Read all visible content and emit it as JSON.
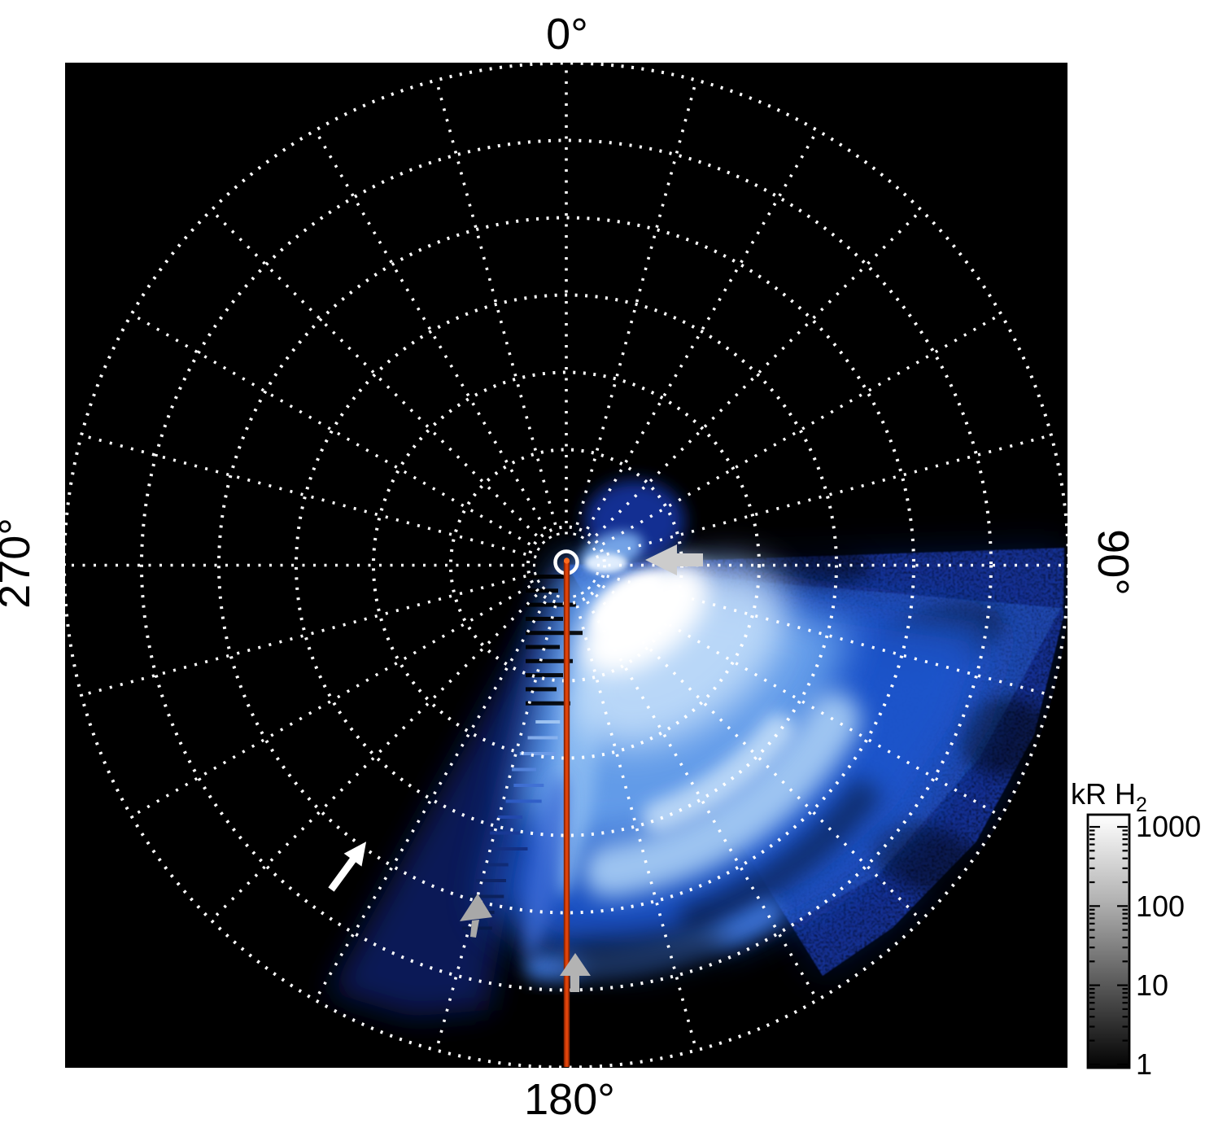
{
  "figure": {
    "angle_labels": {
      "top": "0°",
      "right": "90°",
      "bottom": "180°",
      "left": "270°"
    },
    "colorbar": {
      "title_main": "kR H",
      "title_sub": "2",
      "tick_labels": [
        "1000",
        "100",
        "10",
        "1"
      ]
    },
    "colors": {
      "page_background": "#ffffff",
      "plot_background": "#000000",
      "grid_dots": "#ffffff",
      "red_meridian_line": "#e0430a",
      "red_meridian_edge": "#8d2603",
      "white_arrow": "#ffffff",
      "gray_arrow_center": "#cccccc",
      "gray_arrow_south": "#b3b3b3",
      "gray_arrow_southwest": "#a8a8a8",
      "aurora_palette": [
        "#0a1d60",
        "#16349e",
        "#1f55cc",
        "#69a2ec",
        "#abd0f6",
        "#ffffff"
      ]
    }
  },
  "chart_data": {
    "type": "heatmap",
    "projection": "polar",
    "title": "",
    "units_label": "kR H2",
    "azimuth_tick_labels_deg": [
      0,
      90,
      180,
      270
    ],
    "grid": {
      "spoke_interval_deg": 15,
      "n_rings": 7,
      "style": "dotted white"
    },
    "colorbar": {
      "scale": "log",
      "min": 1,
      "max": 1000,
      "major_ticks": [
        1000,
        100,
        10,
        1
      ],
      "colormap": "grayscale white(bright) to black(dim)"
    },
    "red_line": {
      "from": "pole",
      "to_azimuth_deg": 180,
      "style": "solid orange-red radial line"
    },
    "emission_features": [
      {
        "name": "bright auroral spot",
        "azimuth_deg": 125,
        "radius_frac": 0.18,
        "intensity_kR": "~1000 (saturated white)"
      },
      {
        "name": "main emission fan",
        "azimuth_range_deg": [
          100,
          195
        ],
        "radius_frac_range": [
          0,
          0.85
        ],
        "intensity_kR": "10-300"
      },
      {
        "name": "main arc band",
        "azimuth_range_deg": [
          115,
          175
        ],
        "radius_frac": 0.6,
        "intensity_kR": "~100"
      },
      {
        "name": "secondary outer arc",
        "azimuth_range_deg": [
          150,
          185
        ],
        "radius_frac": 0.8,
        "intensity_kR": "~30"
      },
      {
        "name": "faint speckled field",
        "azimuth_range_deg": [
          88,
          150
        ],
        "radius_frac_range": [
          0.3,
          1.0
        ],
        "intensity_kR": "1-10"
      },
      {
        "name": "streaked wedge north of 90 deg line",
        "azimuth_range_deg": [
          45,
          88
        ],
        "radius_frac_range": [
          0,
          0.33
        ],
        "intensity_kR": "5-50"
      },
      {
        "name": "faint wedge west of meridian",
        "azimuth_range_deg": [
          190,
          212
        ],
        "radius_frac_range": [
          0.45,
          1.0
        ],
        "intensity_kR": "1-5"
      },
      {
        "name": "jagged interpolation edge",
        "azimuth_range_deg": [
          185,
          205
        ],
        "radius_frac_range": [
          0.0,
          0.75
        ]
      }
    ],
    "annotations": [
      {
        "type": "arrow",
        "color": "light-gray",
        "direction": "left toward pole",
        "at": {
          "azimuth_deg": 90,
          "radius_frac": 0.18
        }
      },
      {
        "type": "arrow",
        "color": "gray",
        "direction": "up",
        "at": {
          "azimuth_deg": 179,
          "radius_frac": 0.78
        }
      },
      {
        "type": "arrow",
        "color": "gray",
        "direction": "up, tilted left",
        "at": {
          "azimuth_deg": 196,
          "radius_frac": 0.7
        }
      },
      {
        "type": "arrow",
        "color": "white",
        "direction": "up-right",
        "at": {
          "azimuth_deg": 214,
          "radius_frac": 0.63
        }
      }
    ]
  }
}
